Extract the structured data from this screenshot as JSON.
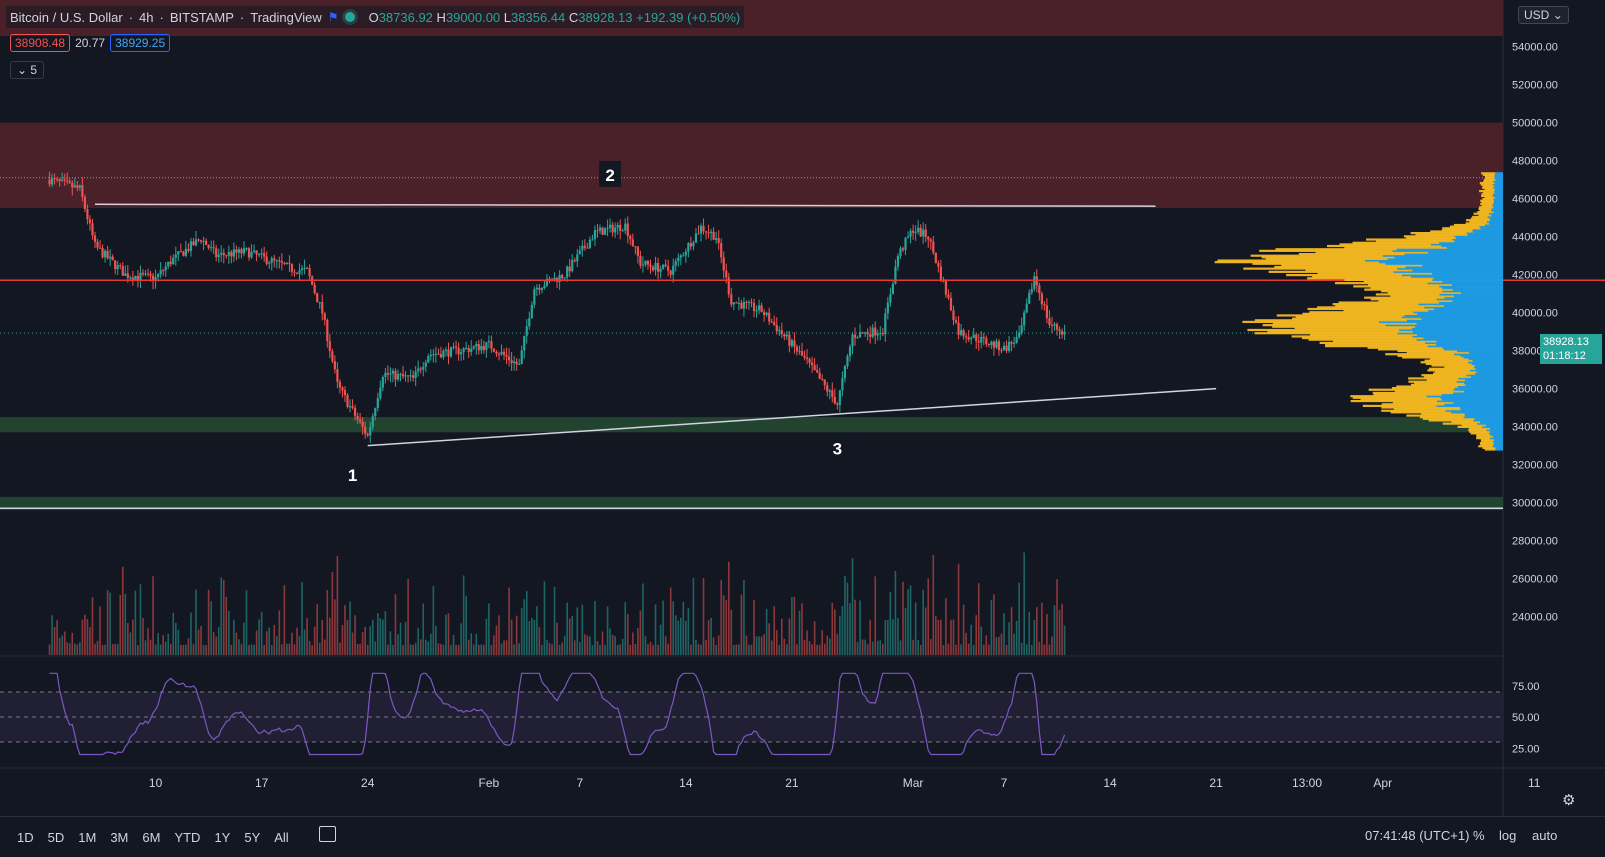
{
  "header": {
    "symbol": "Bitcoin / U.S. Dollar",
    "interval": "4h",
    "exchange": "BITSTAMP",
    "source": "TradingView",
    "ohlc": {
      "o_label": "O",
      "o": "38736.92",
      "h_label": "H",
      "h": "39000.00",
      "l_label": "L",
      "l": "38356.44",
      "c_label": "C",
      "c": "38928.13",
      "change": "+192.39 (+0.50%)"
    }
  },
  "trade": {
    "sell": "38908.48",
    "spread": "20.77",
    "buy": "38929.25"
  },
  "indicators_collapsed": {
    "label": "5"
  },
  "currency": "USD",
  "price_axis": {
    "ticks": [
      "54000.00",
      "52000.00",
      "50000.00",
      "48000.00",
      "46000.00",
      "44000.00",
      "42000.00",
      "40000.00",
      "38000.00",
      "36000.00",
      "34000.00",
      "32000.00",
      "30000.00",
      "28000.00",
      "26000.00",
      "24000.00"
    ],
    "last_price": "38928.13",
    "countdown": "01:18:12"
  },
  "rsi_axis": {
    "ticks": [
      "75.00",
      "50.00",
      "25.00"
    ]
  },
  "time_axis": {
    "ticks": [
      "10",
      "17",
      "24",
      "Feb",
      "7",
      "14",
      "21",
      "Mar",
      "7",
      "14",
      "21",
      "13:00",
      "Apr",
      "11"
    ]
  },
  "annotations": [
    "1",
    "2",
    "3"
  ],
  "bottom_bar": {
    "timeframes": [
      "1D",
      "5D",
      "1M",
      "3M",
      "6M",
      "YTD",
      "1Y",
      "5Y",
      "All"
    ],
    "clock": "07:41:48 (UTC+1)",
    "percent": "%",
    "log": "log",
    "auto": "auto"
  },
  "colors": {
    "up": "#26a69a",
    "down": "#ef5350",
    "resistance_zone": "#4a2129",
    "support_zone": "#22432f",
    "vp_up": "#f5b921",
    "vp_down": "#1e9ee8",
    "rsi": "#7e57c2"
  },
  "chart_data": {
    "type": "candlestick",
    "y_scale": "linear",
    "ylim": [
      32000,
      55000
    ],
    "x_range": [
      "Jan 6",
      "Apr 12"
    ],
    "close_path": [
      [
        "Jan 3",
        47000
      ],
      [
        "Jan 5",
        46500
      ],
      [
        "Jan 6",
        43500
      ],
      [
        "Jan 8",
        42000
      ],
      [
        "Jan 10",
        41800
      ],
      [
        "Jan 11",
        42700
      ],
      [
        "Jan 13",
        43900
      ],
      [
        "Jan 14",
        43000
      ],
      [
        "Jan 16",
        43200
      ],
      [
        "Jan 17",
        42900
      ],
      [
        "Jan 19",
        42300
      ],
      [
        "Jan 20",
        42200
      ],
      [
        "Jan 21",
        40000
      ],
      [
        "Jan 22",
        36200
      ],
      [
        "Jan 23",
        34800
      ],
      [
        "Jan 24",
        33500
      ],
      [
        "Jan 25",
        36800
      ],
      [
        "Jan 27",
        36500
      ],
      [
        "Jan 28",
        37800
      ],
      [
        "Jan 30",
        38000
      ],
      [
        "Feb 1",
        38300
      ],
      [
        "Feb 3",
        37200
      ],
      [
        "Feb 4",
        41300
      ],
      [
        "Feb 6",
        42000
      ],
      [
        "Feb 8",
        44200
      ],
      [
        "Feb 10",
        44600
      ],
      [
        "Feb 11",
        42600
      ],
      [
        "Feb 13",
        42200
      ],
      [
        "Feb 15",
        44500
      ],
      [
        "Feb 16",
        44000
      ],
      [
        "Feb 17",
        40600
      ],
      [
        "Feb 19",
        40100
      ],
      [
        "Feb 21",
        38300
      ],
      [
        "Feb 22",
        37400
      ],
      [
        "Feb 24",
        35200
      ],
      [
        "Feb 25",
        38800
      ],
      [
        "Feb 27",
        39100
      ],
      [
        "Feb 28",
        43000
      ],
      [
        "Mar 1",
        44400
      ],
      [
        "Mar 2",
        44000
      ],
      [
        "Mar 4",
        39000
      ],
      [
        "Mar 6",
        38400
      ],
      [
        "Mar 7",
        38100
      ],
      [
        "Mar 8",
        38700
      ],
      [
        "Mar 9",
        41900
      ],
      [
        "Mar 10",
        39400
      ],
      [
        "Mar 11",
        38928
      ]
    ],
    "levels": {
      "resistance_line": 41700,
      "current_price": 38928,
      "rsi_upper": 70,
      "rsi_mid": 50,
      "rsi_lower": 30
    },
    "zones": {
      "resistance": [
        45500,
        50000
      ],
      "support": [
        33700,
        34500
      ],
      "lower_support": [
        29600,
        30300
      ]
    },
    "trendlines": {
      "top": [
        [
          "Jan 6",
          45700
        ],
        [
          "Mar 17",
          45600
        ]
      ],
      "bottom": [
        [
          "Jan 24",
          33000
        ],
        [
          "Mar 21",
          36000
        ]
      ]
    },
    "rsi_ylim": [
      10,
      90
    ]
  }
}
